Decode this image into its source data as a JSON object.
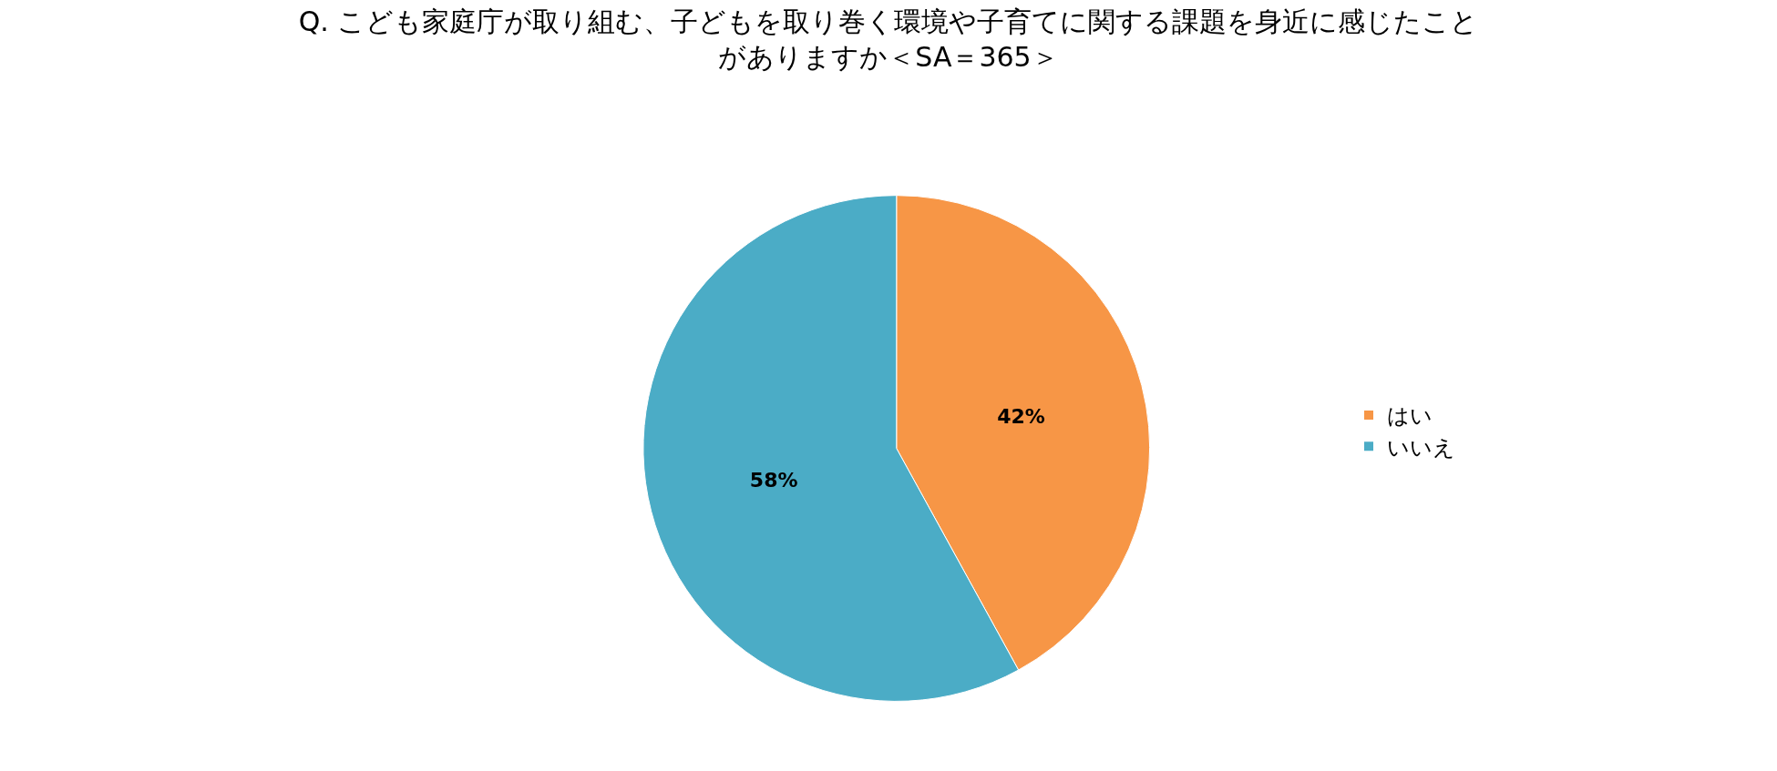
{
  "chart_data": {
    "type": "pie",
    "title": "Q. こども家庭庁が取り組む、子どもを取り巻く環境や子育てに関する課題を身近に感じたことがありますか＜SA＝365＞",
    "categories": [
      "はい",
      "いいえ"
    ],
    "values": [
      42,
      58
    ],
    "value_labels": [
      "42%",
      "58%"
    ],
    "colors": [
      "#f79646",
      "#4bacc6"
    ],
    "legend": "right"
  }
}
